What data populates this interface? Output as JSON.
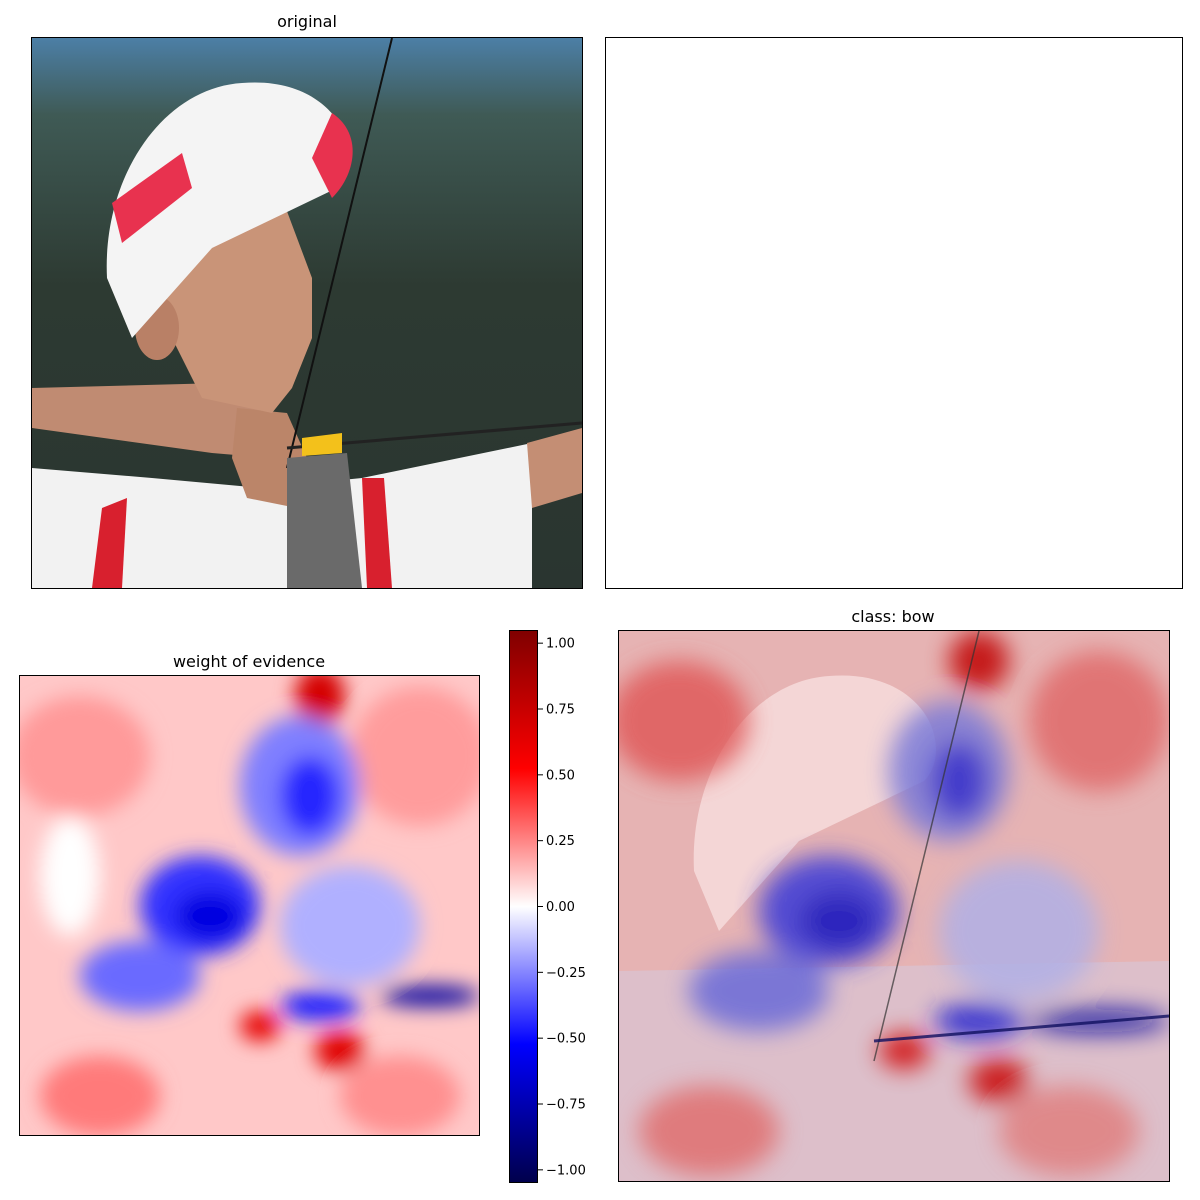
{
  "panels": {
    "original": {
      "title": "original"
    },
    "empty": {
      "title": ""
    },
    "evidence": {
      "title": "weight of evidence"
    },
    "overlay": {
      "title": "class: bow"
    }
  },
  "chart_data": [
    {
      "type": "image",
      "title": "original",
      "description_items": [
        "archer with white and red cap",
        "bow string",
        "yellow-fletched arrow"
      ]
    },
    {
      "type": "image",
      "title": ""
    },
    {
      "type": "heatmap",
      "title": "weight of evidence",
      "colormap": "seismic",
      "vmin": -1.05,
      "vmax": 1.05,
      "colorbar": {
        "ticks": [
          1.0,
          0.75,
          0.5,
          0.25,
          0.0,
          -0.25,
          -0.5,
          -0.75,
          -1.0
        ],
        "tick_labels": [
          "1.00",
          "0.75",
          "0.50",
          "0.25",
          "0.00",
          "−0.25",
          "−0.50",
          "−0.75",
          "−1.00"
        ]
      }
    },
    {
      "type": "heatmap",
      "title": "class: bow",
      "colormap": "seismic",
      "overlay": true
    }
  ],
  "colors": {
    "cap_red": "#e8324f",
    "shirt_red": "#d8202e",
    "arrow_yellow": "#f3c11b",
    "strong_red": "#b00000",
    "strong_blue": "#0000c0"
  }
}
